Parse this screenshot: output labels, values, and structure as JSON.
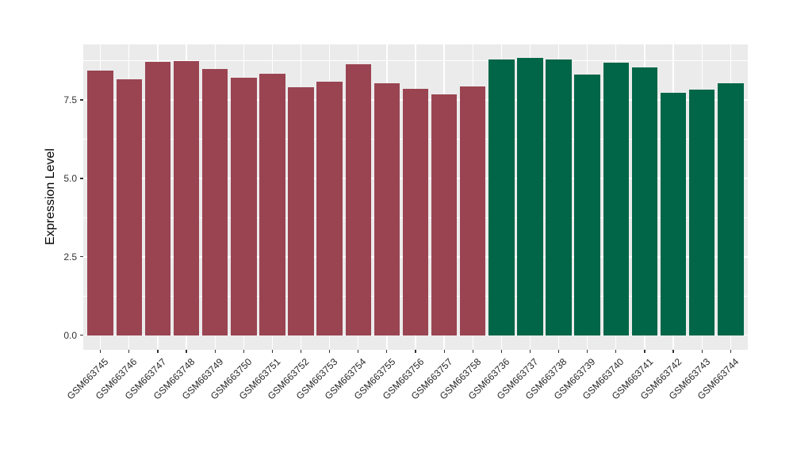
{
  "chart_data": {
    "type": "bar",
    "title": "",
    "xlabel": "",
    "ylabel": "Expression Level",
    "categories": [
      "GSM663745",
      "GSM663746",
      "GSM663747",
      "GSM663748",
      "GSM663749",
      "GSM663750",
      "GSM663751",
      "GSM663752",
      "GSM663753",
      "GSM663754",
      "GSM663755",
      "GSM663756",
      "GSM663757",
      "GSM663758",
      "GSM663736",
      "GSM663737",
      "GSM663738",
      "GSM663739",
      "GSM663740",
      "GSM663741",
      "GSM663742",
      "GSM663743",
      "GSM663744"
    ],
    "values": [
      8.43,
      8.15,
      8.71,
      8.74,
      8.49,
      8.21,
      8.34,
      7.9,
      8.07,
      8.64,
      8.03,
      7.85,
      7.67,
      7.92,
      8.79,
      8.83,
      8.8,
      8.3,
      8.68,
      8.54,
      7.73,
      7.82,
      8.04
    ],
    "groups": [
      "groupA",
      "groupA",
      "groupA",
      "groupA",
      "groupA",
      "groupA",
      "groupA",
      "groupA",
      "groupA",
      "groupA",
      "groupA",
      "groupA",
      "groupA",
      "groupA",
      "groupB",
      "groupB",
      "groupB",
      "groupB",
      "groupB",
      "groupB",
      "groupB",
      "groupB",
      "groupB"
    ],
    "group_colors": {
      "groupA": "#9A4452",
      "groupB": "#006647"
    },
    "ylim": [
      -0.46,
      9.27
    ],
    "yticks": [
      0,
      2.5,
      5,
      7.5
    ],
    "ytick_labels": [
      "0.0",
      "2.5",
      "5.0",
      "7.5"
    ],
    "yticks_minor": [
      1.25,
      3.75,
      6.25,
      8.75
    ],
    "bar_width_fraction": 0.9,
    "grid": true,
    "legend": false,
    "panel_bg": "#EBEBEB",
    "grid_color": "#FFFFFF"
  }
}
